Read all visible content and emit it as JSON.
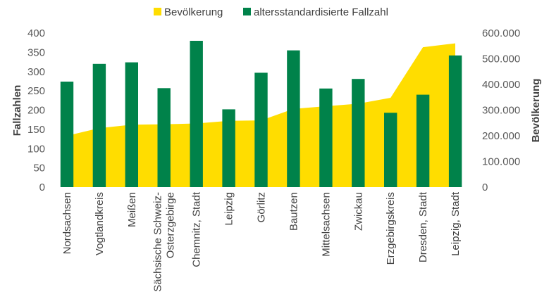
{
  "chart_data": {
    "type": "bar",
    "categories": [
      "Nordsachsen",
      "Vogtlandkreis",
      "Meißen",
      "Sächsische Schweiz-\nOsterzgebirge",
      "Chemnitz, Stadt",
      "Leipzig",
      "Görlitz",
      "Bautzen",
      "Mittelsachsen",
      "Zwickau",
      "Erzgebirgskreis",
      "Dresden, Stadt",
      "Leipzig, Stadt"
    ],
    "series": [
      {
        "name": "Bevölkerung",
        "type": "area",
        "axis": "right",
        "color": "#FFDD00",
        "values": [
          200000,
          230000,
          243000,
          245000,
          248000,
          258000,
          260000,
          305000,
          315000,
          325000,
          348000,
          545000,
          560000
        ]
      },
      {
        "name": "altersstandardisierte Fallzahl",
        "type": "bar",
        "axis": "left",
        "color": "#00824A",
        "values": [
          274,
          320,
          324,
          257,
          380,
          202,
          297,
          355,
          256,
          281,
          193,
          240,
          342
        ]
      }
    ],
    "ylabel": "Fallzahlen",
    "y2label": "Bevölkerung",
    "ylim": [
      0,
      400
    ],
    "y2lim": [
      0,
      600000
    ],
    "yticks": [
      "0",
      "50",
      "100",
      "150",
      "200",
      "250",
      "300",
      "350",
      "400"
    ],
    "y2ticks": [
      "0",
      "100.000",
      "200.000",
      "300.000",
      "400.000",
      "500.000",
      "600.000"
    ],
    "legend": "top"
  }
}
